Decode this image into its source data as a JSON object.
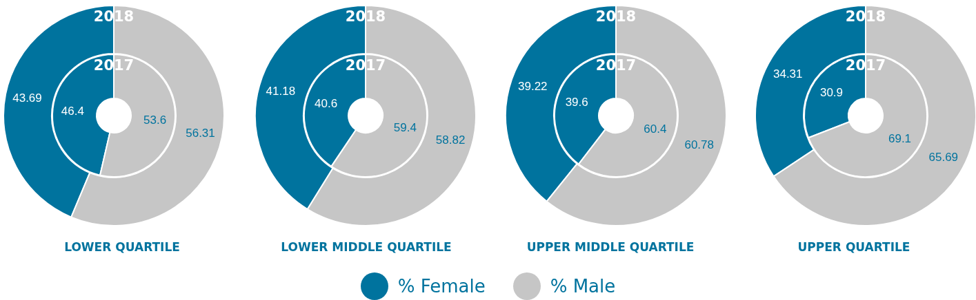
{
  "chart_data": [
    {
      "type": "donut",
      "title": "LOWER QUARTILE",
      "categories": [
        "% Female",
        "% Male"
      ],
      "colors": [
        "#00739e",
        "#c6c6c6"
      ],
      "data_labels": true,
      "legend": "bottom",
      "series": [
        {
          "name": "2018",
          "values": [
            43.69,
            56.31
          ]
        },
        {
          "name": "2017",
          "values": [
            46.4,
            53.6
          ]
        }
      ]
    },
    {
      "type": "donut",
      "title": "LOWER MIDDLE QUARTILE",
      "colors": [
        "#00739e",
        "#c6c6c6"
      ],
      "data_labels": true,
      "series": [
        {
          "name": "2018",
          "values": [
            41.18,
            58.82
          ]
        },
        {
          "name": "2017",
          "values": [
            40.6,
            59.4
          ]
        }
      ]
    },
    {
      "type": "donut",
      "title": "UPPER MIDDLE QUARTILE",
      "colors": [
        "#00739e",
        "#c6c6c6"
      ],
      "data_labels": true,
      "series": [
        {
          "name": "2018",
          "values": [
            39.22,
            60.78
          ]
        },
        {
          "name": "2017",
          "values": [
            39.6,
            60.4
          ]
        }
      ]
    },
    {
      "type": "donut",
      "title": "UPPER QUARTILE",
      "colors": [
        "#00739e",
        "#c6c6c6"
      ],
      "data_labels": true,
      "series": [
        {
          "name": "2018",
          "values": [
            34.31,
            65.69
          ]
        },
        {
          "name": "2017",
          "values": [
            30.9,
            69.1
          ]
        }
      ]
    }
  ]
}
